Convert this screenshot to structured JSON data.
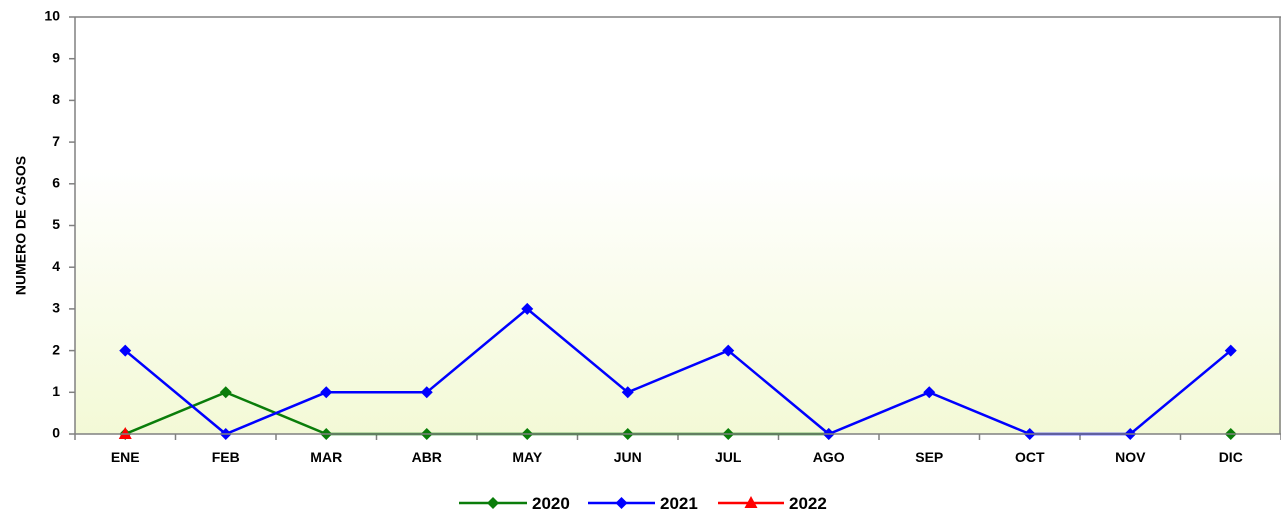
{
  "chart_data": {
    "type": "line",
    "title": "",
    "xlabel": "",
    "ylabel": "NUMERO DE CASOS",
    "categories": [
      "ENE",
      "FEB",
      "MAR",
      "ABR",
      "MAY",
      "JUN",
      "JUL",
      "AGO",
      "SEP",
      "OCT",
      "NOV",
      "DIC"
    ],
    "ylim": [
      0,
      10
    ],
    "yticks": [
      0,
      1,
      2,
      3,
      4,
      5,
      6,
      7,
      8,
      9,
      10
    ],
    "grid": false,
    "legend_position": "bottom",
    "series": [
      {
        "name": "2020",
        "values": [
          0,
          1,
          0,
          0,
          0,
          0,
          0,
          0,
          null,
          null,
          null,
          0
        ],
        "color": "#0a7d0a",
        "marker": "diamond"
      },
      {
        "name": "2021",
        "values": [
          2,
          0,
          1,
          1,
          3,
          1,
          2,
          0,
          1,
          0,
          0,
          2
        ],
        "color": "#0000ff",
        "marker": "diamond"
      },
      {
        "name": "2022",
        "values": [
          0,
          null,
          null,
          null,
          null,
          null,
          null,
          null,
          null,
          null,
          null,
          null
        ],
        "color": "#ff0000",
        "marker": "triangle"
      }
    ]
  }
}
